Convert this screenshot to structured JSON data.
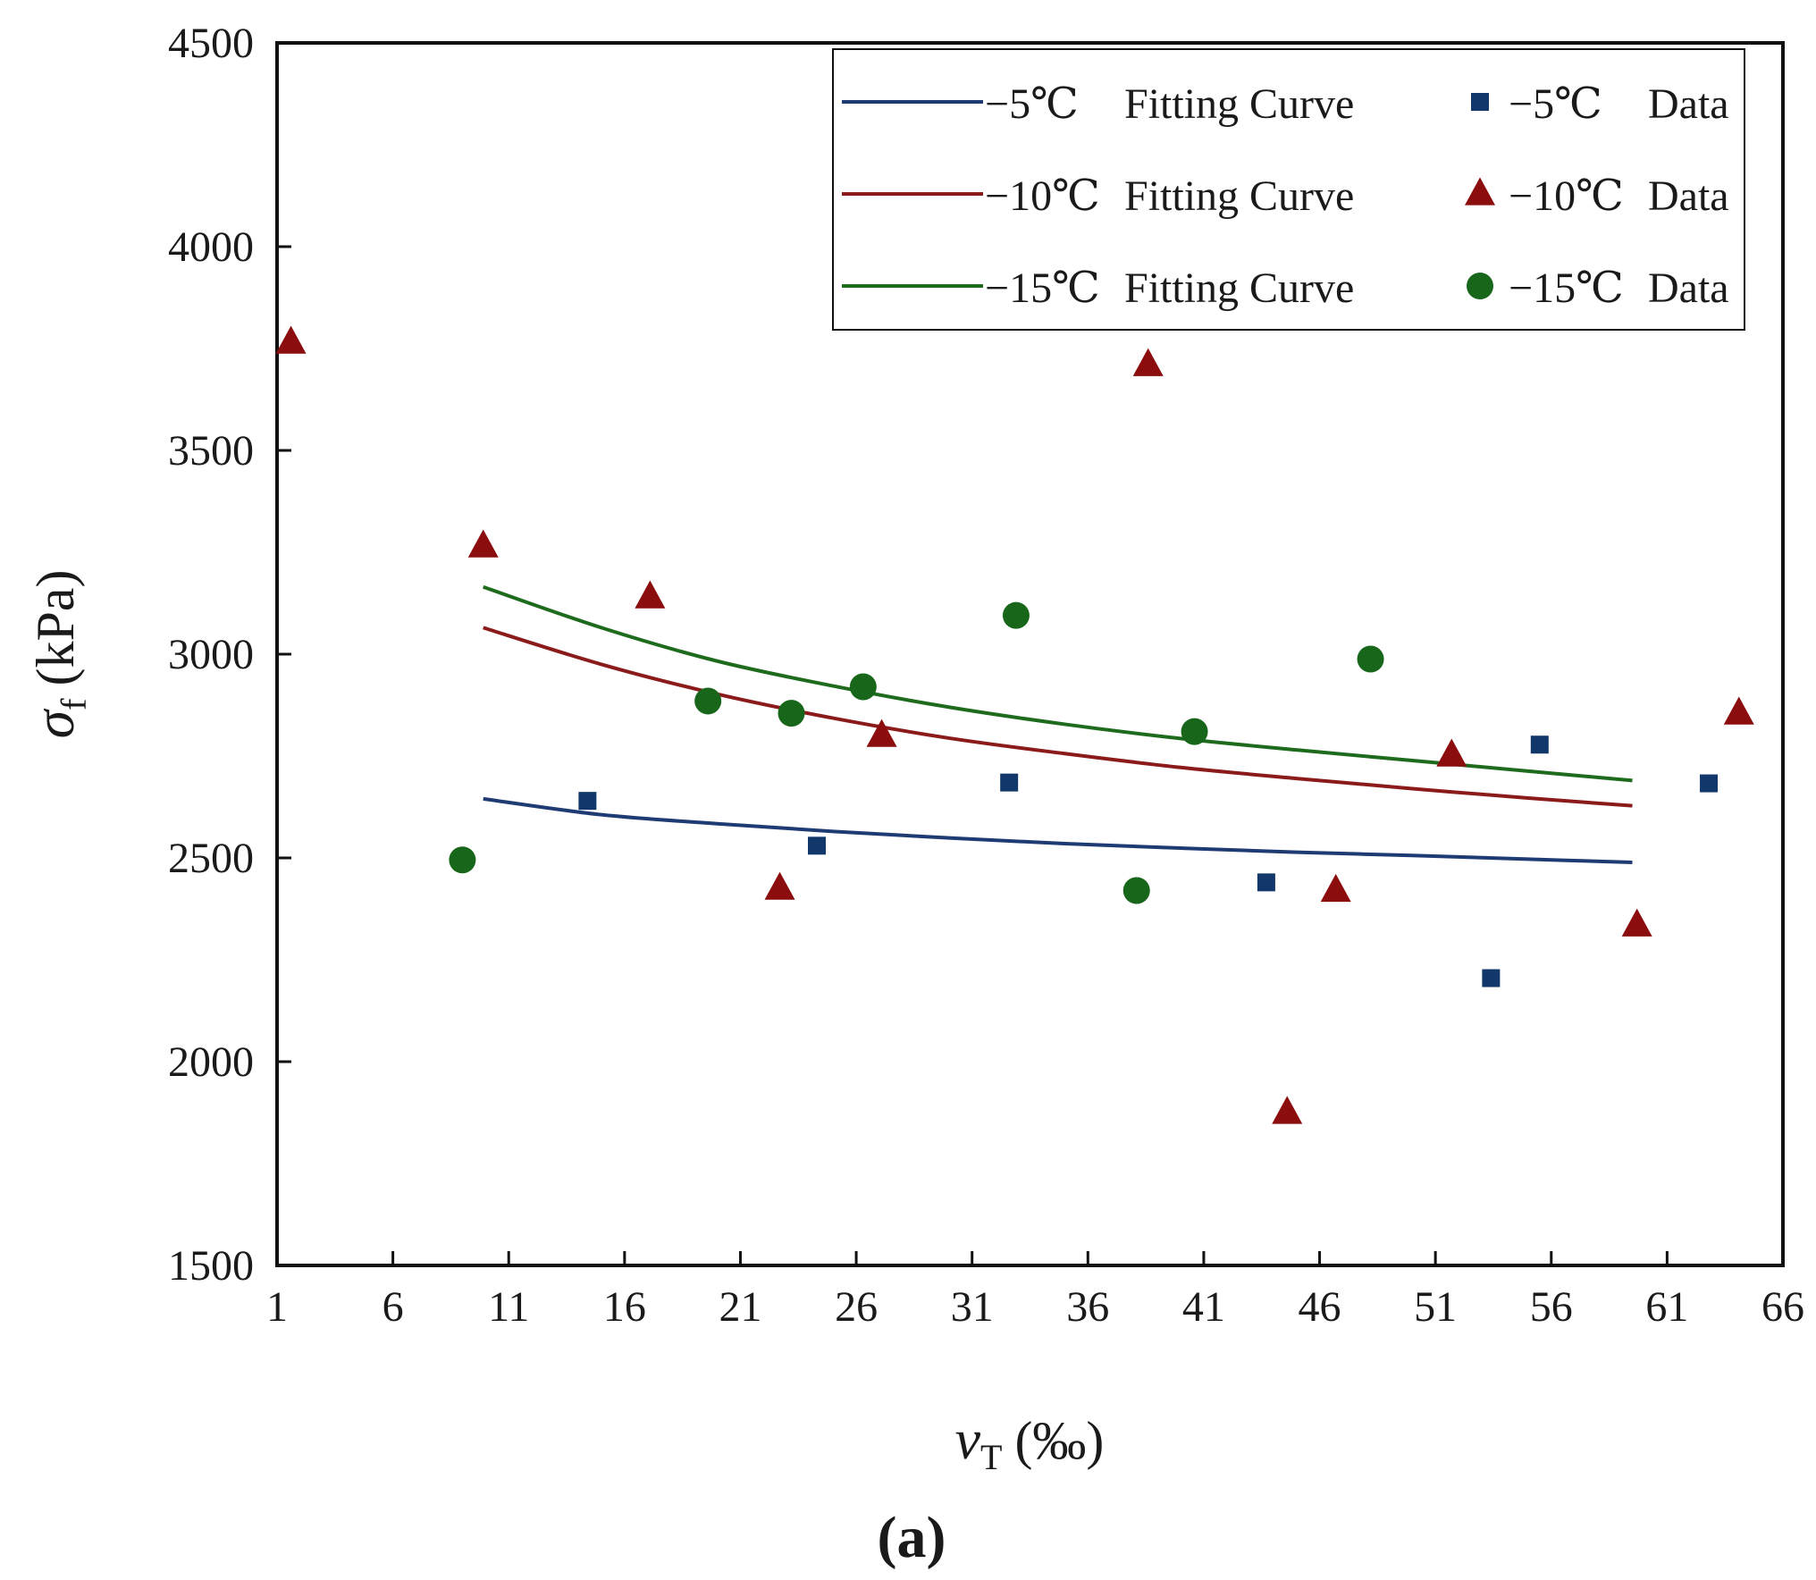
{
  "chart_data": {
    "type": "scatter",
    "title": "",
    "xlabel_main": "v",
    "xlabel_sub": "T",
    "xlabel_unit": "(‰)",
    "ylabel_main": "σ",
    "ylabel_sub": "f",
    "ylabel_unit": "(kPa)",
    "panel_label": "(a)",
    "panel_letter": "a",
    "xlim": [
      1,
      66
    ],
    "ylim": [
      1500,
      4500
    ],
    "xticks": [
      1,
      6,
      11,
      16,
      21,
      26,
      31,
      36,
      41,
      46,
      51,
      56,
      61,
      66
    ],
    "yticks": [
      1500,
      2000,
      2500,
      3000,
      3500,
      4000,
      4500
    ],
    "legend_position": "top-right",
    "series": [
      {
        "name": "−5℃ Fitting Curve",
        "label_temp": "−5℃",
        "label_rest": "Fitting Curve",
        "kind": "line",
        "color": "#1f3b73",
        "x": [
          9.9,
          15,
          20,
          25,
          30,
          35,
          40,
          45,
          50,
          55,
          59.5
        ],
        "y": [
          2645,
          2606,
          2584,
          2565,
          2549,
          2535,
          2524,
          2514,
          2506,
          2497,
          2489
        ]
      },
      {
        "name": "−10℃ Fitting Curve",
        "label_temp": "−10℃",
        "label_rest": "Fitting Curve",
        "kind": "line",
        "color": "#8b1a1a",
        "x": [
          9.9,
          15,
          20,
          25,
          30,
          35,
          40,
          45,
          50,
          55,
          59.5
        ],
        "y": [
          3065,
          2975,
          2902,
          2843,
          2794,
          2756,
          2722,
          2695,
          2670,
          2647,
          2628
        ]
      },
      {
        "name": "−15℃ Fitting Curve",
        "label_temp": "−15℃",
        "label_rest": "Fitting Curve",
        "kind": "line",
        "color": "#1e6b1e",
        "x": [
          9.9,
          15,
          20,
          25,
          30,
          35,
          40,
          45,
          50,
          55,
          59.5
        ],
        "y": [
          3165,
          3065,
          2983,
          2922,
          2870,
          2828,
          2793,
          2765,
          2739,
          2713,
          2690
        ]
      },
      {
        "name": "−5℃ Data",
        "label_temp": "−5℃",
        "label_rest": "Data",
        "kind": "scatter",
        "marker": "square",
        "color": "#12386b",
        "x": [
          14.4,
          24.3,
          32.6,
          43.7,
          53.4,
          55.5,
          62.8
        ],
        "y": [
          2640,
          2530,
          2685,
          2440,
          2205,
          2778,
          2683
        ]
      },
      {
        "name": "−10℃ Data",
        "label_temp": "−10℃",
        "label_rest": "Data",
        "kind": "scatter",
        "marker": "triangle",
        "color": "#8b0d0d",
        "x": [
          1.6,
          9.9,
          17.1,
          22.7,
          27.1,
          38.6,
          44.6,
          46.7,
          51.7,
          59.7,
          64.1
        ],
        "y": [
          3765,
          3265,
          3140,
          2425,
          2800,
          3710,
          1875,
          2420,
          2752,
          2335,
          2855
        ]
      },
      {
        "name": "−15℃ Data",
        "label_temp": "−15℃",
        "label_rest": "Data",
        "kind": "scatter",
        "marker": "circle",
        "color": "#17661a",
        "x": [
          9.0,
          19.6,
          23.2,
          26.3,
          32.9,
          38.1,
          40.6,
          48.2
        ],
        "y": [
          2495,
          2885,
          2855,
          2920,
          3095,
          2420,
          2810,
          2988
        ]
      }
    ]
  }
}
